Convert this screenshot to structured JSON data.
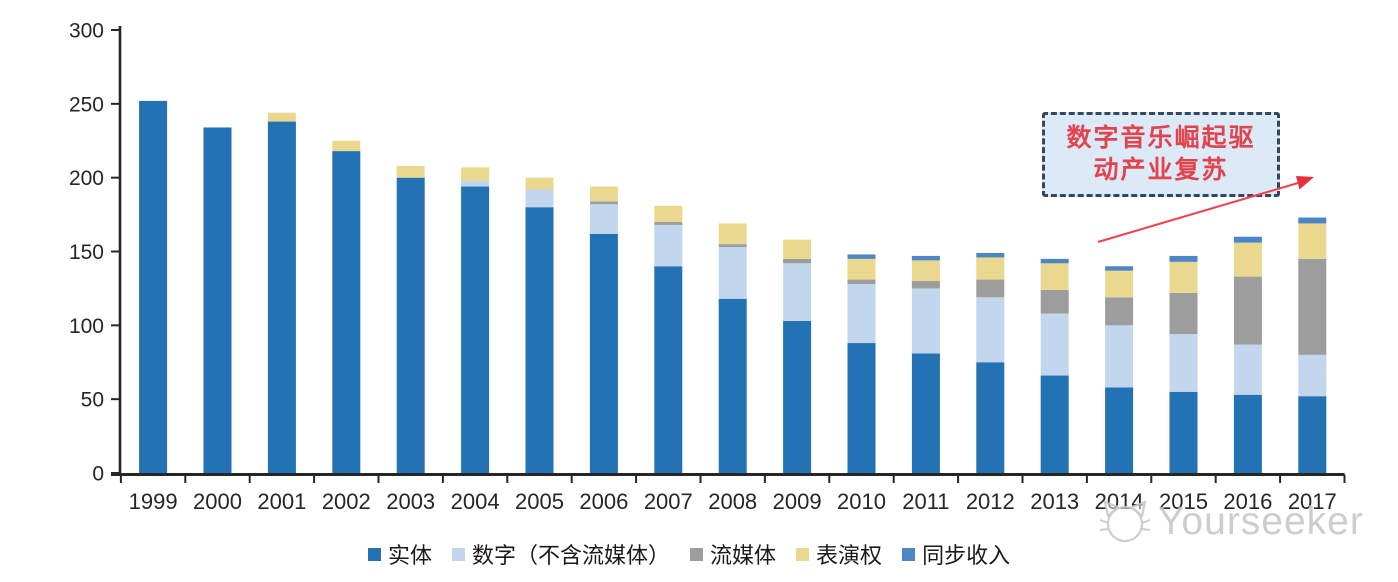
{
  "chart_data": {
    "type": "bar",
    "stacked": true,
    "title": "",
    "categories": [
      "1999",
      "2000",
      "2001",
      "2002",
      "2003",
      "2004",
      "2005",
      "2006",
      "2007",
      "2008",
      "2009",
      "2010",
      "2011",
      "2012",
      "2013",
      "2014",
      "2015",
      "2016",
      "2017"
    ],
    "series": [
      {
        "name": "实体",
        "color": "#2272B4",
        "values": [
          252,
          234,
          238,
          218,
          200,
          194,
          180,
          162,
          140,
          118,
          103,
          88,
          81,
          75,
          66,
          58,
          55,
          53,
          52
        ]
      },
      {
        "name": "数字（不含流媒体）",
        "color": "#C2D6EE",
        "values": [
          0,
          0,
          0,
          0,
          0,
          4,
          12,
          20,
          28,
          35,
          39,
          40,
          44,
          44,
          42,
          42,
          39,
          34,
          28
        ]
      },
      {
        "name": "流媒体",
        "color": "#9D9D9D",
        "values": [
          0,
          0,
          0,
          0,
          0,
          0,
          0,
          2,
          2,
          2,
          3,
          3,
          5,
          12,
          16,
          19,
          28,
          46,
          65
        ]
      },
      {
        "name": "表演权",
        "color": "#EBD88F",
        "values": [
          0,
          0,
          6,
          7,
          8,
          9,
          8,
          10,
          11,
          14,
          13,
          14,
          14,
          15,
          18,
          18,
          21,
          23,
          24
        ]
      },
      {
        "name": "同步收入",
        "color": "#4D86C4",
        "values": [
          0,
          0,
          0,
          0,
          0,
          0,
          0,
          0,
          0,
          0,
          0,
          3,
          3,
          3,
          3,
          3,
          4,
          4,
          4
        ]
      }
    ],
    "ylim": [
      0,
      300
    ],
    "yticks": [
      0,
      50,
      100,
      150,
      200,
      250,
      300
    ],
    "xlabel": "",
    "ylabel": "",
    "grid": false,
    "legend_position": "bottom",
    "axis_color": "#262626"
  },
  "annotation": {
    "line1": "数字音乐崛起驱",
    "line2": "动产业复苏",
    "text_color": "#e2444e",
    "box_fill": "#dce9f7",
    "border_color": "#37465f",
    "arrow_color": "#f0414b"
  },
  "watermark": {
    "text": "Yourseeker",
    "color": "#c7c7c7"
  }
}
